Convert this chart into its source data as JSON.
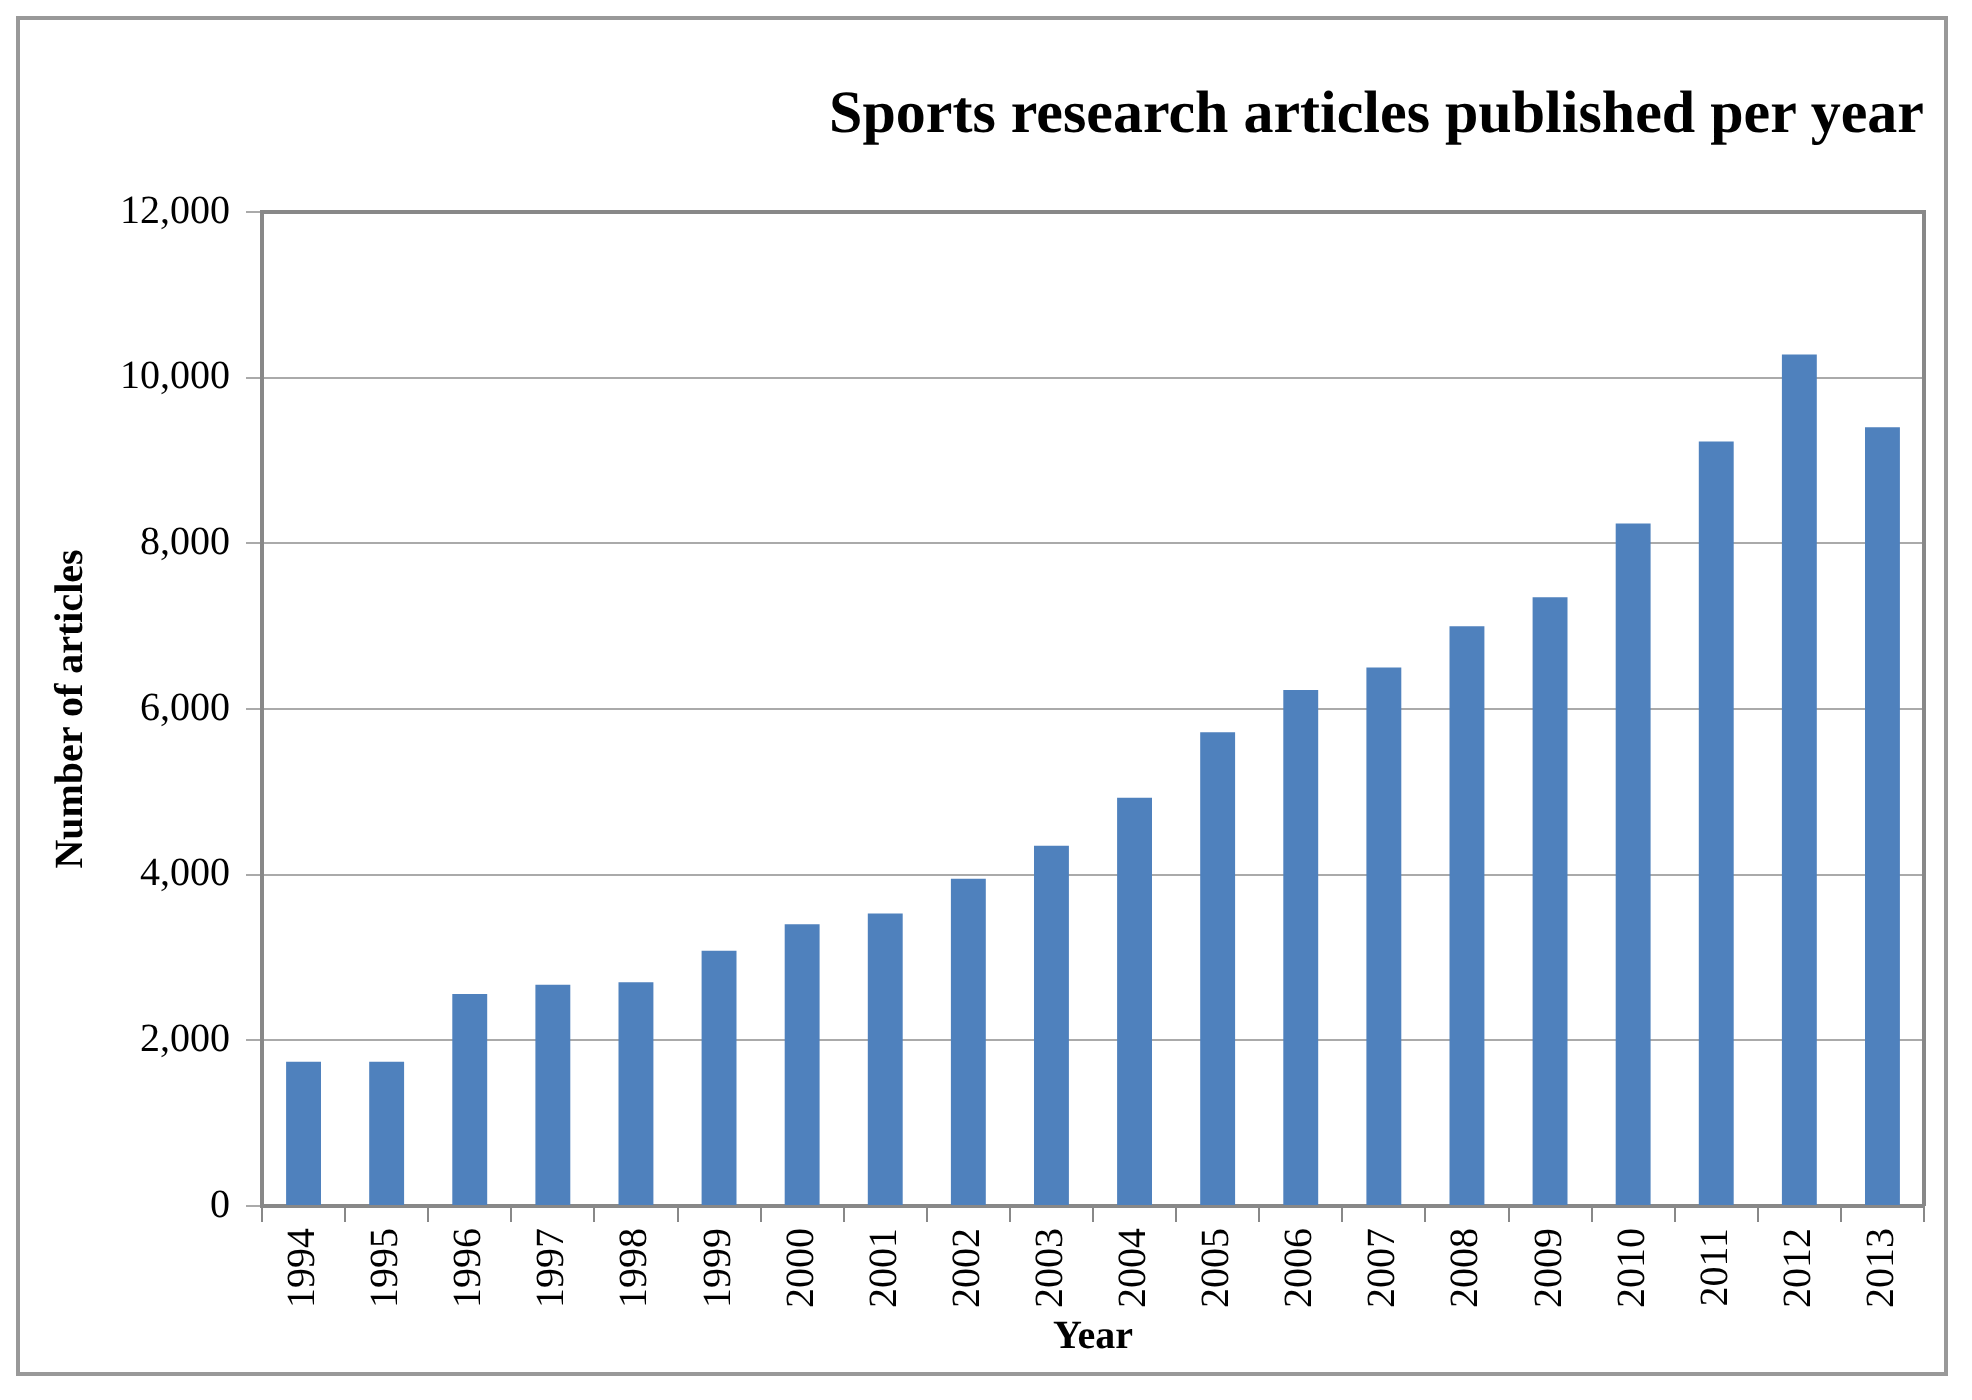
{
  "chart_data": {
    "type": "bar",
    "title": "Sports research articles published per year",
    "xlabel": "Year",
    "ylabel": "Number of articles",
    "categories": [
      "1994",
      "1995",
      "1996",
      "1997",
      "1998",
      "1999",
      "2000",
      "2001",
      "2002",
      "2003",
      "2004",
      "2005",
      "2006",
      "2007",
      "2008",
      "2009",
      "2010",
      "2011",
      "2012",
      "2013"
    ],
    "values": [
      1740,
      1740,
      2560,
      2670,
      2700,
      3080,
      3400,
      3530,
      3950,
      4350,
      4930,
      5720,
      6230,
      6500,
      7000,
      7350,
      8240,
      9230,
      10280,
      9400
    ],
    "color": "#4f81bd",
    "ylim": [
      0,
      12000
    ],
    "yticks": [
      {
        "value": 0,
        "label": "0"
      },
      {
        "value": 2000,
        "label": "2,000"
      },
      {
        "value": 4000,
        "label": "4,000"
      },
      {
        "value": 6000,
        "label": "6,000"
      },
      {
        "value": 8000,
        "label": "8,000"
      },
      {
        "value": 10000,
        "label": "10,000"
      },
      {
        "value": 12000,
        "label": "12,000"
      }
    ],
    "grid": "y",
    "legend": false
  }
}
